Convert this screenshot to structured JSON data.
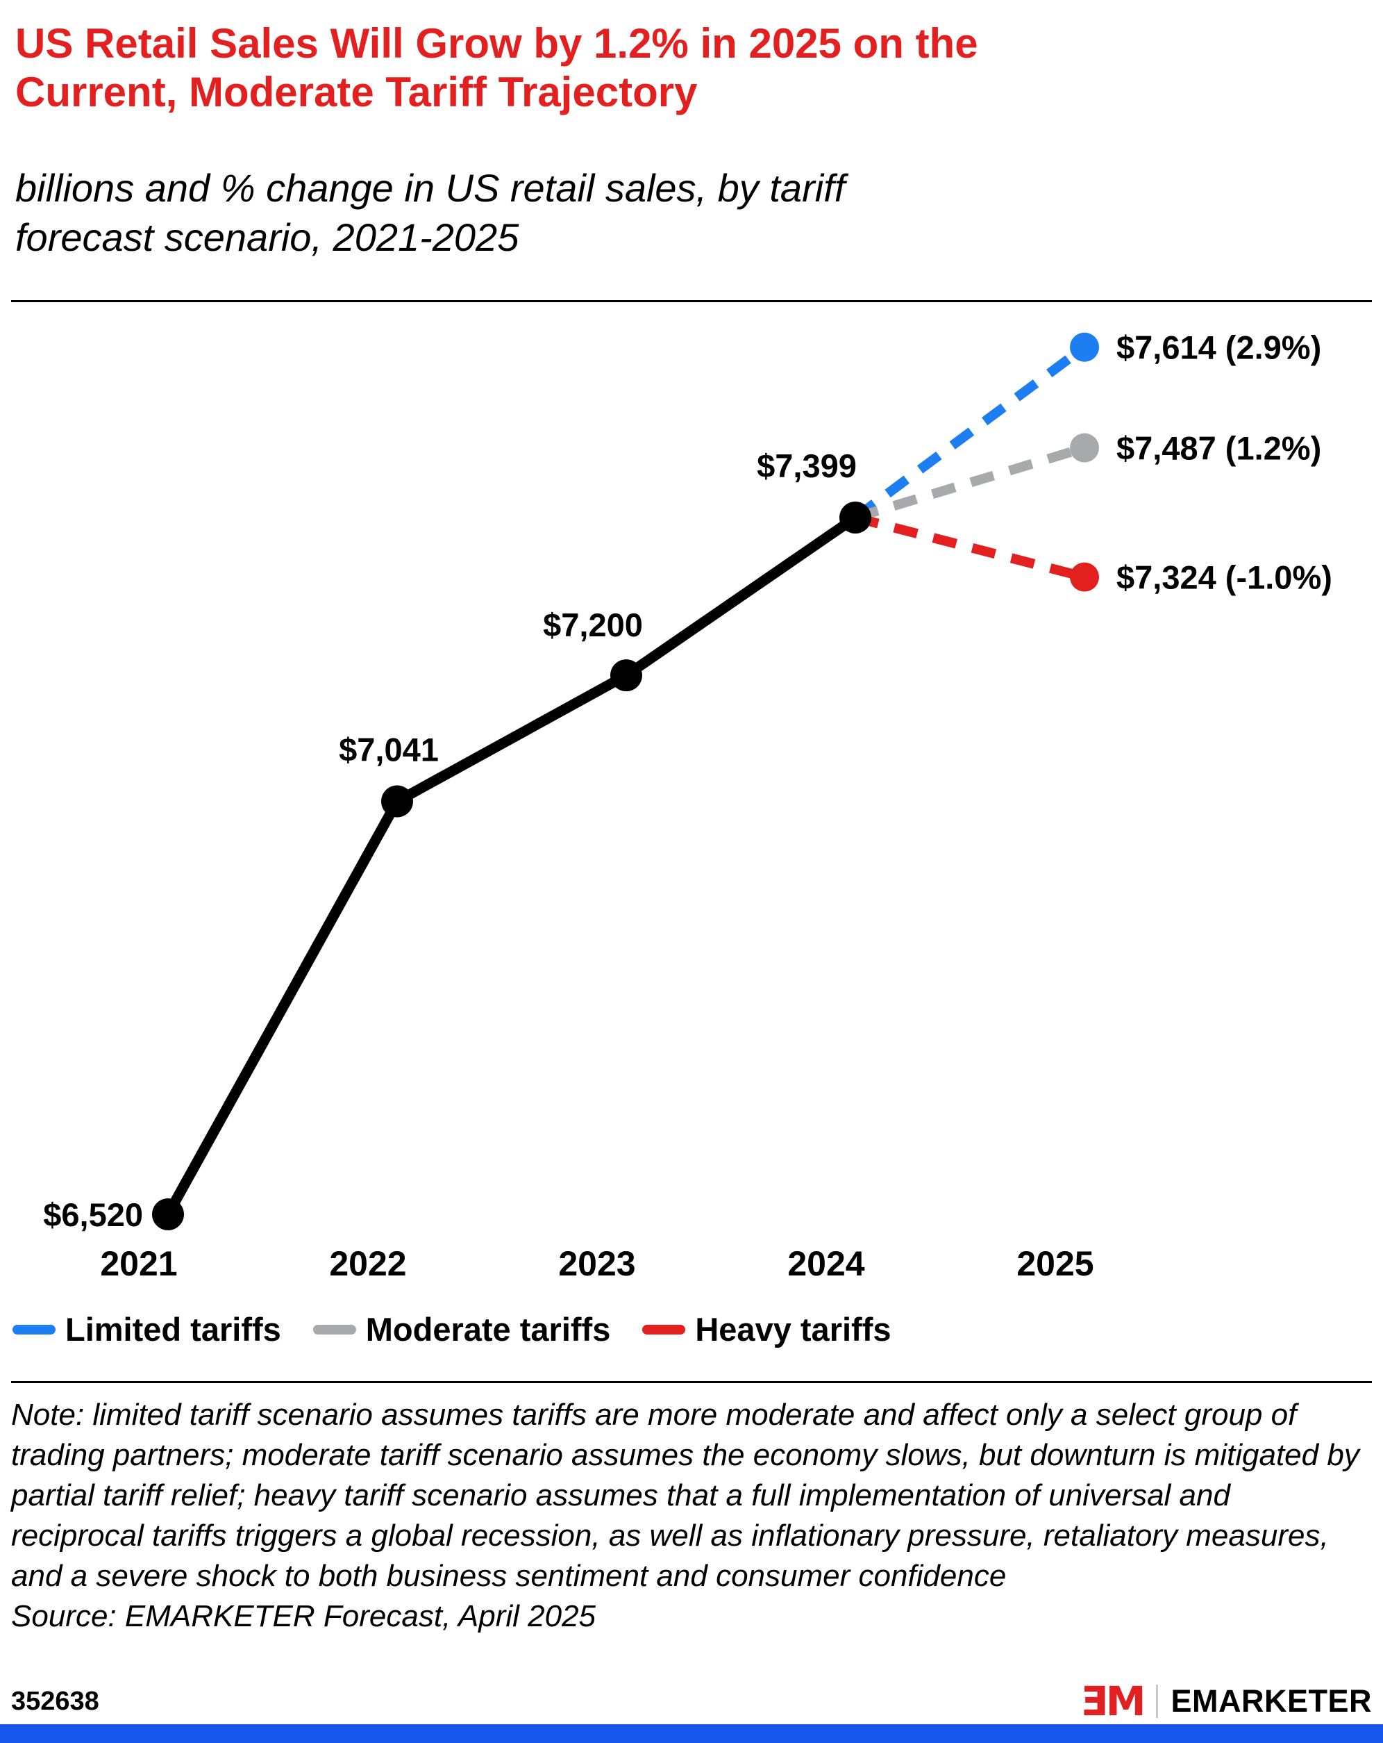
{
  "header": {
    "title_lines": [
      "US Retail Sales Will Grow by 1.2% in 2025 on the",
      "Current, Moderate Tariff Trajectory"
    ],
    "subtitle_lines": [
      "billions and % change in US retail sales, by tariff",
      "forecast scenario, 2021-2025"
    ]
  },
  "chart_data": {
    "type": "line",
    "title": "US Retail Sales Will Grow by 1.2% in 2025 on the Current, Moderate Tariff Trajectory",
    "subtitle": "billions and % change in US retail sales, by tariff forecast scenario, 2021-2025",
    "unit": "billions of US dollars",
    "x_ticks": [
      "2021",
      "2022",
      "2023",
      "2024",
      "2025"
    ],
    "grid": false,
    "legend_position": "bottom",
    "ylim": [
      6400,
      7700
    ],
    "historical": {
      "name": "US retail sales (actual/forecast base)",
      "years": [
        "2021",
        "2022",
        "2023",
        "2024"
      ],
      "values": [
        6520,
        7041,
        7200,
        7399
      ],
      "labels": [
        "$6,520",
        "$7,041",
        "$7,200",
        "$7,399"
      ],
      "color": "#000000",
      "style": "solid"
    },
    "scenarios": [
      {
        "name": "Limited tariffs",
        "year": "2025",
        "value": 7614,
        "pct_change": "2.9%",
        "label": "$7,614 (2.9%)",
        "color": "#1d7ef2",
        "style": "dashed"
      },
      {
        "name": "Moderate tariffs",
        "year": "2025",
        "value": 7487,
        "pct_change": "1.2%",
        "label": "$7,487 (1.2%)",
        "color": "#a7a9ac",
        "style": "dashed"
      },
      {
        "name": "Heavy tariffs",
        "year": "2025",
        "value": 7324,
        "pct_change": "-1.0%",
        "label": "$7,324 (-1.0%)",
        "color": "#e1201f",
        "style": "dashed"
      }
    ]
  },
  "legend": {
    "items": [
      {
        "label": "Limited tariffs",
        "color": "#1d7ef2"
      },
      {
        "label": "Moderate tariffs",
        "color": "#a7a9ac"
      },
      {
        "label": "Heavy tariffs",
        "color": "#e1201f"
      }
    ]
  },
  "notes": {
    "note": "Note: limited tariff scenario assumes tariffs are more moderate and affect only a select group of trading partners; moderate tariff scenario assumes the economy slows, but downturn is mitigated by partial tariff relief; heavy tariff scenario assumes that a full implementation of universal and reciprocal tariffs triggers a global recession, as well as inflationary pressure, retaliatory measures, and a severe shock to both business sentiment and consumer confidence",
    "source": "Source: EMARKETER Forecast, April 2025"
  },
  "footer": {
    "chart_id": "352638",
    "logo_mark": "ƎM",
    "brand": "EMARKETER"
  },
  "colors": {
    "title_red": "#e1201f",
    "logo_red": "#e1201f",
    "bottom_bar_blue": "#1757ee",
    "line_black": "#000000"
  }
}
